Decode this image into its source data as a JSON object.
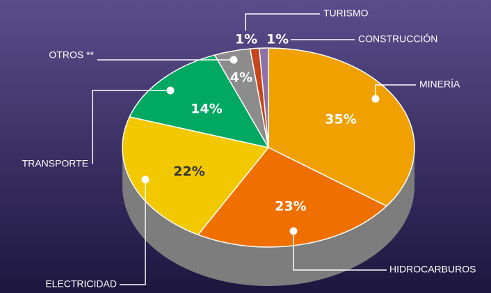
{
  "chart_data": {
    "type": "pie",
    "categories": [
      "MINERÍA",
      "HIDROCARBUROS",
      "ELECTRICIDAD",
      "TRANSPORTE",
      "OTROS **",
      "TURISMO",
      "CONSTRUCCIÓN"
    ],
    "values": [
      35,
      23,
      22,
      14,
      4,
      1,
      1
    ],
    "value_labels": [
      "35%",
      "23%",
      "22%",
      "14%",
      "4%",
      "1%",
      "1%"
    ],
    "colors": [
      "#f0a000",
      "#ef7000",
      "#f2c800",
      "#00a862",
      "#8c8c8c",
      "#c4461a",
      "#8e6fa8"
    ]
  }
}
